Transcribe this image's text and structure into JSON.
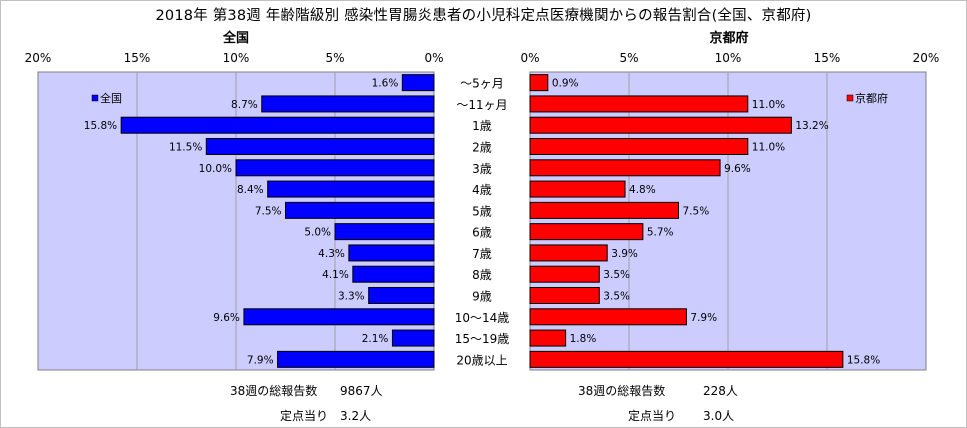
{
  "title": "2018年 第38週 年齢階級別 感染性胃腸炎患者の小児科定点医療機関からの報告割合(全国、京都府)",
  "chart_data": {
    "type": "bar",
    "orientation": "horizontal",
    "title": "2018年 第38週 年齢階級別 感染性胃腸炎患者の小児科定点医療機関からの報告割合(全国、京都府)",
    "categories": [
      "～5ヶ月",
      "～11ヶ月",
      "1歳",
      "2歳",
      "3歳",
      "4歳",
      "5歳",
      "6歳",
      "7歳",
      "8歳",
      "9歳",
      "10～14歳",
      "15～19歳",
      "20歳以上"
    ],
    "xlim": [
      0,
      20
    ],
    "x_ticks": [
      "20%",
      "15%",
      "10%",
      "5%",
      "0%"
    ],
    "x_ticks_right": [
      "0%",
      "5%",
      "10%",
      "15%",
      "20%"
    ],
    "grid": true,
    "series": [
      {
        "name": "全国",
        "panel_title": "全国",
        "legend": "全国",
        "color": "#0000ff",
        "values": [
          1.6,
          8.7,
          15.8,
          11.5,
          10.0,
          8.4,
          7.5,
          5.0,
          4.3,
          4.1,
          3.3,
          9.6,
          2.1,
          7.9
        ],
        "labels": [
          "1.6%",
          "8.7%",
          "15.8%",
          "11.5%",
          "10.0%",
          "8.4%",
          "7.5%",
          "5.0%",
          "4.3%",
          "4.1%",
          "3.3%",
          "9.6%",
          "2.1%",
          "7.9%"
        ]
      },
      {
        "name": "京都府",
        "panel_title": "京都府",
        "legend": "京都府",
        "color": "#ff0000",
        "values": [
          0.9,
          11.0,
          13.2,
          11.0,
          9.6,
          4.8,
          7.5,
          5.7,
          3.9,
          3.5,
          3.5,
          7.9,
          1.8,
          15.8
        ],
        "labels": [
          "0.9%",
          "11.0%",
          "13.2%",
          "11.0%",
          "9.6%",
          "4.8%",
          "7.5%",
          "5.7%",
          "3.9%",
          "3.5%",
          "3.5%",
          "7.9%",
          "1.8%",
          "15.8%"
        ]
      }
    ]
  },
  "footer": {
    "left": {
      "total_label": "38週の総報告数",
      "total_value": "9867人",
      "per_label": "定点当り",
      "per_value": "3.2人"
    },
    "right": {
      "total_label": "38週の総報告数",
      "total_value": "228人",
      "per_label": "定点当り",
      "per_value": "3.0人"
    }
  },
  "colors": {
    "plot_bg": "#ccccff",
    "grid": "#a0a0a0",
    "left_bar": "#0000ff",
    "right_bar": "#ff0000"
  }
}
